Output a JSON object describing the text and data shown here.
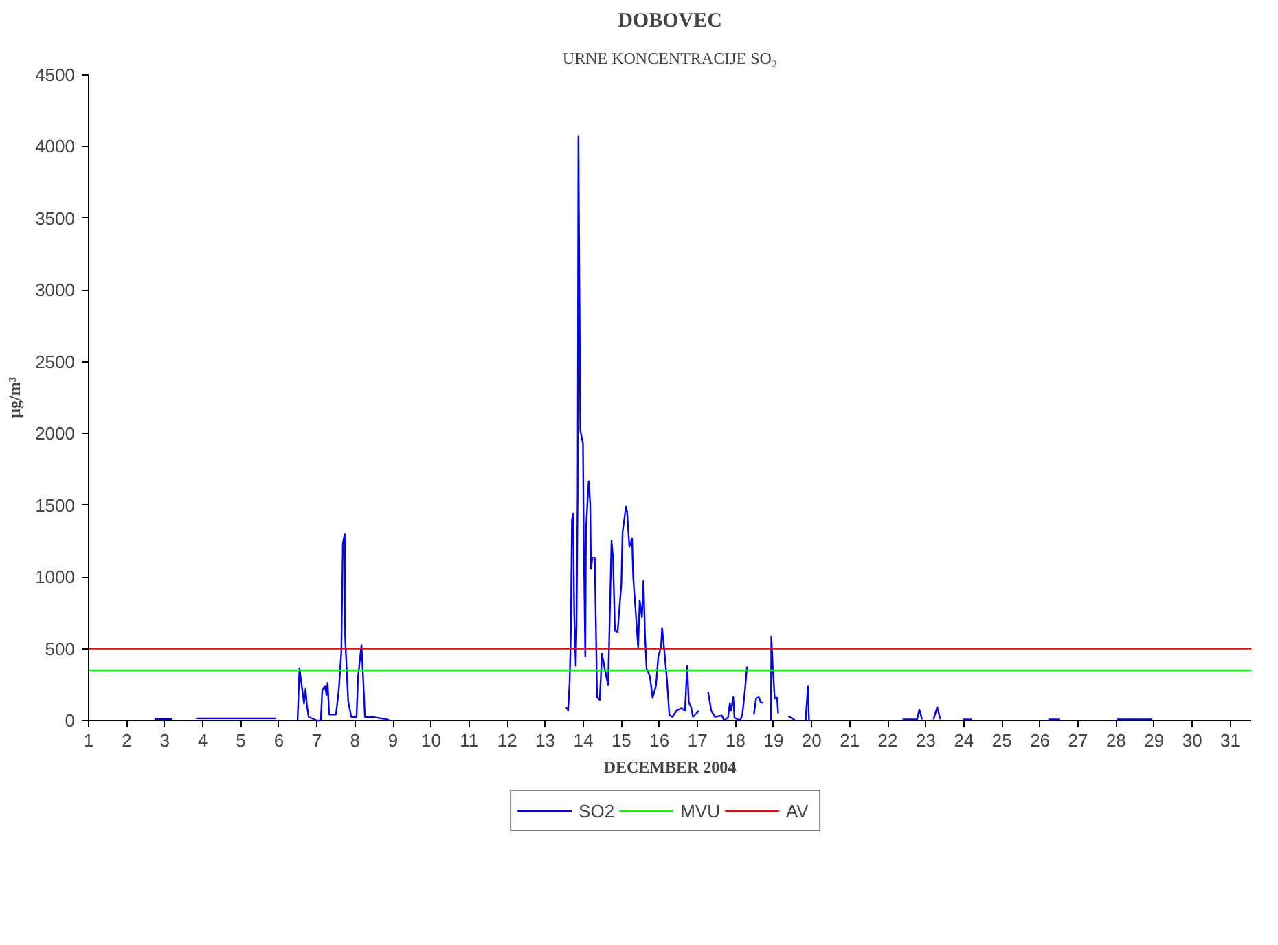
{
  "chart_data": {
    "type": "line",
    "title": "DOBOVEC",
    "subtitle": "URNE KONCENTRACIJE SO₂",
    "xlabel": "DECEMBER 2004",
    "ylabel": "µg/m³",
    "xlim": [
      1,
      31.55
    ],
    "xticks": [
      1,
      2,
      3,
      4,
      5,
      6,
      7,
      8,
      9,
      10,
      11,
      12,
      13,
      14,
      15,
      16,
      17,
      18,
      19,
      20,
      21,
      22,
      23,
      24,
      25,
      26,
      27,
      28,
      29,
      30,
      31
    ],
    "ylim": [
      0,
      4500
    ],
    "yticks": [
      0,
      500,
      1000,
      1500,
      2000,
      2500,
      3000,
      3500,
      4000,
      4500
    ],
    "grid": false,
    "legend": "bottom",
    "line_style": "solid",
    "marker": "none",
    "series": [
      {
        "name": "SO2",
        "color": "#0000ff",
        "x": [
          2.73,
          3.2,
          3.3,
          3.82,
          5.91,
          6.0,
          6.49,
          6.54,
          6.66,
          6.7,
          6.73,
          6.78,
          6.99,
          7.1,
          7.14,
          7.21,
          7.25,
          7.28,
          7.32,
          7.35,
          7.5,
          7.57,
          7.64,
          7.68,
          7.73,
          7.74,
          7.82,
          7.9,
          8.04,
          8.08,
          8.17,
          8.22,
          8.26,
          8.44,
          8.8,
          8.91,
          9.0,
          13.55,
          13.6,
          13.64,
          13.67,
          13.7,
          13.73,
          13.76,
          13.8,
          13.82,
          13.85,
          13.87,
          13.9,
          13.92,
          13.99,
          14.01,
          14.05,
          14.07,
          14.14,
          14.18,
          14.2,
          14.24,
          14.3,
          14.32,
          14.36,
          14.43,
          14.49,
          14.56,
          14.65,
          14.68,
          14.74,
          14.78,
          14.83,
          14.9,
          15.0,
          15.03,
          15.12,
          15.15,
          15.21,
          15.28,
          15.31,
          15.37,
          15.44,
          15.48,
          15.54,
          15.58,
          15.62,
          15.66,
          15.75,
          15.82,
          15.91,
          15.97,
          16.04,
          16.07,
          16.13,
          16.2,
          16.26,
          16.34,
          16.45,
          16.58,
          16.67,
          16.73,
          16.77,
          16.83,
          16.88,
          17.04,
          17.1,
          17.28,
          17.36,
          17.46,
          17.64,
          17.7,
          17.8,
          17.85,
          17.88,
          17.94,
          17.97,
          18.12,
          18.18,
          18.25,
          18.3,
          18.35,
          18.48,
          18.54,
          18.61,
          18.66,
          18.72,
          18.8,
          18.93,
          18.94,
          18.98,
          19.03,
          19.09,
          19.12,
          19.2,
          19.39,
          19.57,
          19.7,
          19.84,
          19.9,
          19.93,
          20.0,
          22.39,
          22.45,
          22.77,
          22.83,
          22.9,
          23.0,
          23.2,
          23.3,
          23.38,
          23.5,
          23.98,
          24.2,
          24.3,
          26.22,
          26.51,
          26.6,
          28.03,
          28.95
        ],
        "values": [
          10,
          10,
          null,
          15,
          15,
          null,
          0,
          364,
          118,
          220,
          118,
          25,
          0,
          0,
          211,
          237,
          178,
          262,
          42,
          42,
          42,
          203,
          474,
          1235,
          1300,
          584,
          135,
          25,
          25,
          305,
          525,
          262,
          25,
          25,
          10,
          0,
          null,
          93,
          68,
          273,
          600,
          1396,
          1441,
          744,
          381,
          660,
          1574,
          4070,
          2876,
          2022,
          1929,
          1277,
          448,
          1337,
          1667,
          1514,
          1058,
          1134,
          1134,
          812,
          161,
          144,
          465,
          364,
          245,
          570,
          1252,
          1134,
          626,
          618,
          956,
          1311,
          1489,
          1455,
          1210,
          1269,
          998,
          778,
          508,
          838,
          719,
          973,
          600,
          364,
          305,
          157,
          245,
          448,
          508,
          643,
          482,
          273,
          38,
          25,
          68,
          85,
          68,
          381,
          127,
          93,
          25,
          68,
          null,
          197,
          68,
          25,
          35,
          0,
          20,
          121,
          68,
          163,
          20,
          0,
          42,
          220,
          375,
          null,
          42,
          152,
          163,
          127,
          121,
          null,
          0,
          584,
          364,
          152,
          158,
          50,
          null,
          30,
          0,
          null,
          0,
          237,
          0,
          null,
          8,
          8,
          8,
          76,
          8,
          null,
          8,
          93,
          8,
          null,
          8,
          8,
          null,
          8,
          8,
          null,
          8,
          8
        ]
      },
      {
        "name": "MVU",
        "color": "#00ff00",
        "x": [
          1,
          31.55
        ],
        "values": [
          350,
          350
        ]
      },
      {
        "name": "AV",
        "color": "#ff0000",
        "x": [
          1,
          31.55
        ],
        "values": [
          500,
          500
        ]
      }
    ]
  }
}
